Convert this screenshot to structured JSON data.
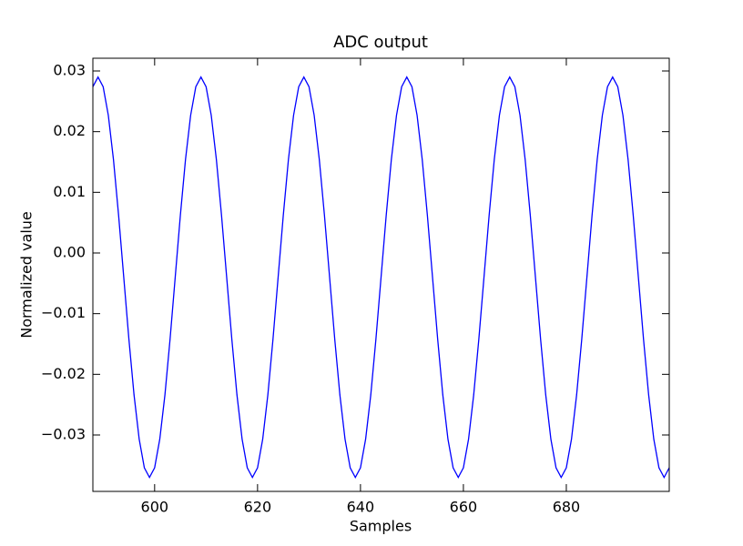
{
  "chart_data": {
    "type": "line",
    "title": "ADC output",
    "x_label": "Samples",
    "y_label": "Normalized value",
    "color": "#0000ff",
    "x": [
      588,
      589,
      590,
      591,
      592,
      593,
      594,
      595,
      596,
      597,
      598,
      599,
      600,
      601,
      602,
      603,
      604,
      605,
      606,
      607,
      608,
      609,
      610,
      611,
      612,
      613,
      614,
      615,
      616,
      617,
      618,
      619,
      620,
      621,
      622,
      623,
      624,
      625,
      626,
      627,
      628,
      629,
      630,
      631,
      632,
      633,
      634,
      635,
      636,
      637,
      638,
      639,
      640,
      641,
      642,
      643,
      644,
      645,
      646,
      647,
      648,
      649,
      650,
      651,
      652,
      653,
      654,
      655,
      656,
      657,
      658,
      659,
      660,
      661,
      662,
      663,
      664,
      665,
      666,
      667,
      668,
      669,
      670,
      671,
      672,
      673,
      674,
      675,
      676,
      677,
      678,
      679,
      680,
      681,
      682,
      683,
      684,
      685,
      686,
      687,
      688,
      689,
      690,
      691,
      692,
      693,
      694,
      695,
      696,
      697,
      698,
      699,
      700
    ],
    "values": [
      0.0274,
      0.029,
      0.0274,
      0.0227,
      0.0154,
      0.0062,
      -0.004,
      -0.0142,
      -0.0234,
      -0.0307,
      -0.0354,
      -0.037,
      -0.0354,
      -0.0307,
      -0.0234,
      -0.0142,
      -0.004,
      0.0062,
      0.0154,
      0.0227,
      0.0274,
      0.029,
      0.0274,
      0.0227,
      0.0154,
      0.0062,
      -0.004,
      -0.0142,
      -0.0234,
      -0.0307,
      -0.0354,
      -0.037,
      -0.0354,
      -0.0307,
      -0.0234,
      -0.0142,
      -0.004,
      0.0062,
      0.0154,
      0.0227,
      0.0274,
      0.029,
      0.0274,
      0.0227,
      0.0154,
      0.0062,
      -0.004,
      -0.0142,
      -0.0234,
      -0.0307,
      -0.0354,
      -0.037,
      -0.0354,
      -0.0307,
      -0.0234,
      -0.0142,
      -0.004,
      0.0062,
      0.0154,
      0.0227,
      0.0274,
      0.029,
      0.0274,
      0.0227,
      0.0154,
      0.0062,
      -0.004,
      -0.0142,
      -0.0234,
      -0.0307,
      -0.0354,
      -0.037,
      -0.0354,
      -0.0307,
      -0.0234,
      -0.0142,
      -0.004,
      0.0062,
      0.0154,
      0.0227,
      0.0274,
      0.029,
      0.0274,
      0.0227,
      0.0154,
      0.0062,
      -0.004,
      -0.0142,
      -0.0234,
      -0.0307,
      -0.0354,
      -0.037,
      -0.0354,
      -0.0307,
      -0.0234,
      -0.0142,
      -0.004,
      0.0062,
      0.0154,
      0.0227,
      0.0274,
      0.029,
      0.0274,
      0.0227,
      0.0154,
      0.0062,
      -0.004,
      -0.0142,
      -0.0234,
      -0.0307,
      -0.0354,
      -0.037,
      -0.0354
    ],
    "xlim": [
      588,
      700
    ],
    "xticks": [
      600,
      620,
      640,
      660,
      680
    ],
    "ylim": [
      -0.0393,
      0.0321
    ],
    "yticks": [
      {
        "value": -0.03,
        "label": "−0.03"
      },
      {
        "value": -0.02,
        "label": "−0.02"
      },
      {
        "value": -0.01,
        "label": "−0.01"
      },
      {
        "value": 0,
        "label": "0.00"
      },
      0.01,
      0.02,
      0.03
    ]
  }
}
